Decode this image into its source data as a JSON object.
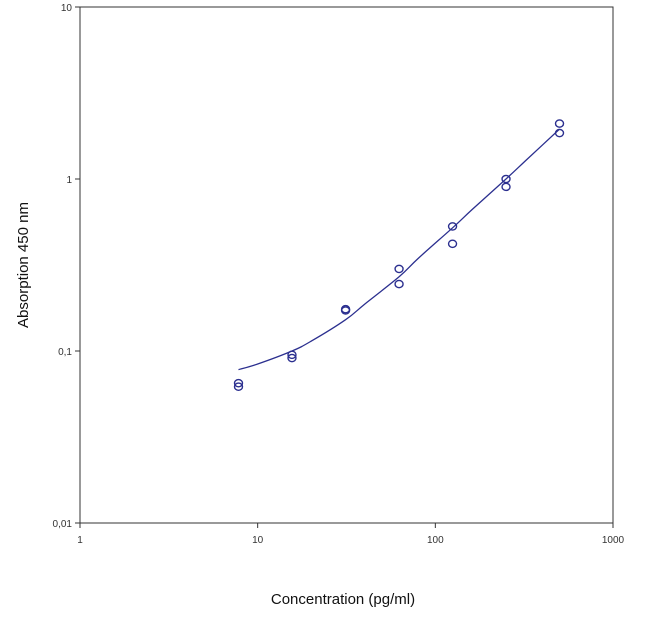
{
  "chart_data": {
    "type": "scatter",
    "xlabel": "Concentration (pg/ml)",
    "ylabel": "Absorption 450 nm",
    "x_scale": "log",
    "y_scale": "log",
    "xlim": [
      1,
      1000
    ],
    "ylim": [
      0.01,
      10
    ],
    "x_ticks": [
      {
        "value": 1,
        "label": "1"
      },
      {
        "value": 10,
        "label": "10"
      },
      {
        "value": 100,
        "label": "100"
      },
      {
        "value": 1000,
        "label": "1000"
      }
    ],
    "y_ticks": [
      {
        "value": 0.01,
        "label": "0,01"
      },
      {
        "value": 0.1,
        "label": "0,1"
      },
      {
        "value": 1,
        "label": "1"
      },
      {
        "value": 10,
        "label": "10"
      }
    ],
    "grid": false,
    "legend": "none",
    "colors": {
      "points": "#2b2f8f",
      "curve": "#2b2f8f",
      "axes": "#333333"
    },
    "series": [
      {
        "kind": "points",
        "x": [
          7.8,
          7.8,
          15.6,
          15.6,
          31.25,
          31.25,
          62.5,
          62.5,
          125,
          125,
          250,
          250,
          500,
          500
        ],
        "y": [
          0.065,
          0.062,
          0.095,
          0.091,
          0.175,
          0.172,
          0.3,
          0.245,
          0.53,
          0.42,
          1.0,
          0.9,
          2.1,
          1.85
        ]
      },
      {
        "kind": "fit-curve",
        "x": [
          7.8,
          10,
          15.6,
          20,
          31.25,
          40,
          62.5,
          80,
          125,
          160,
          250,
          320,
          500
        ],
        "y": [
          0.078,
          0.084,
          0.1,
          0.114,
          0.152,
          0.187,
          0.27,
          0.345,
          0.52,
          0.66,
          1.0,
          1.27,
          1.95
        ]
      }
    ]
  }
}
